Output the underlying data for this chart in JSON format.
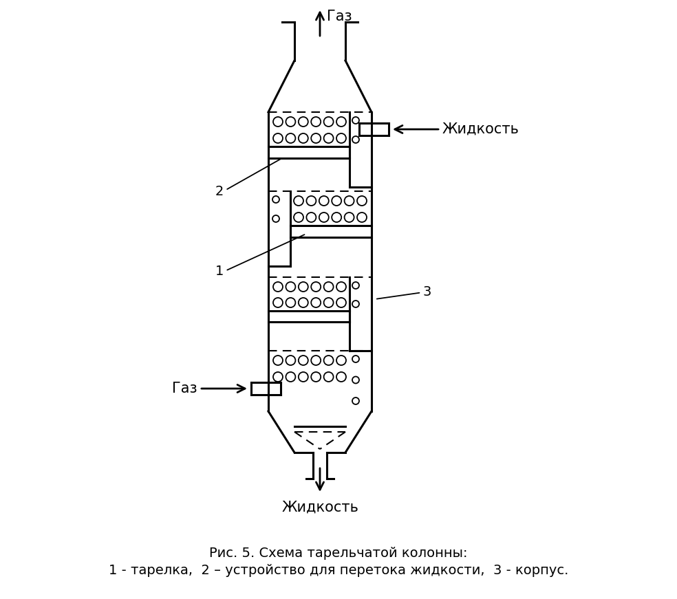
{
  "title_line1": "Рис. 5. Схема тарельчатой колонны:",
  "title_line2": "1 - тарелка,  2 – устройство для перетока жидкости,  3 - корпус.",
  "label_gas_top": "Газ",
  "label_liquid_right": "Жидкость",
  "label_gas_left": "Газ",
  "label_liquid_bottom": "Жидкость",
  "label_1": "1",
  "label_2": "2",
  "label_3": "3",
  "bg_color": "#ffffff",
  "line_color": "#000000",
  "font_size_labels": 15,
  "font_size_numbers": 14,
  "font_size_caption": 14
}
